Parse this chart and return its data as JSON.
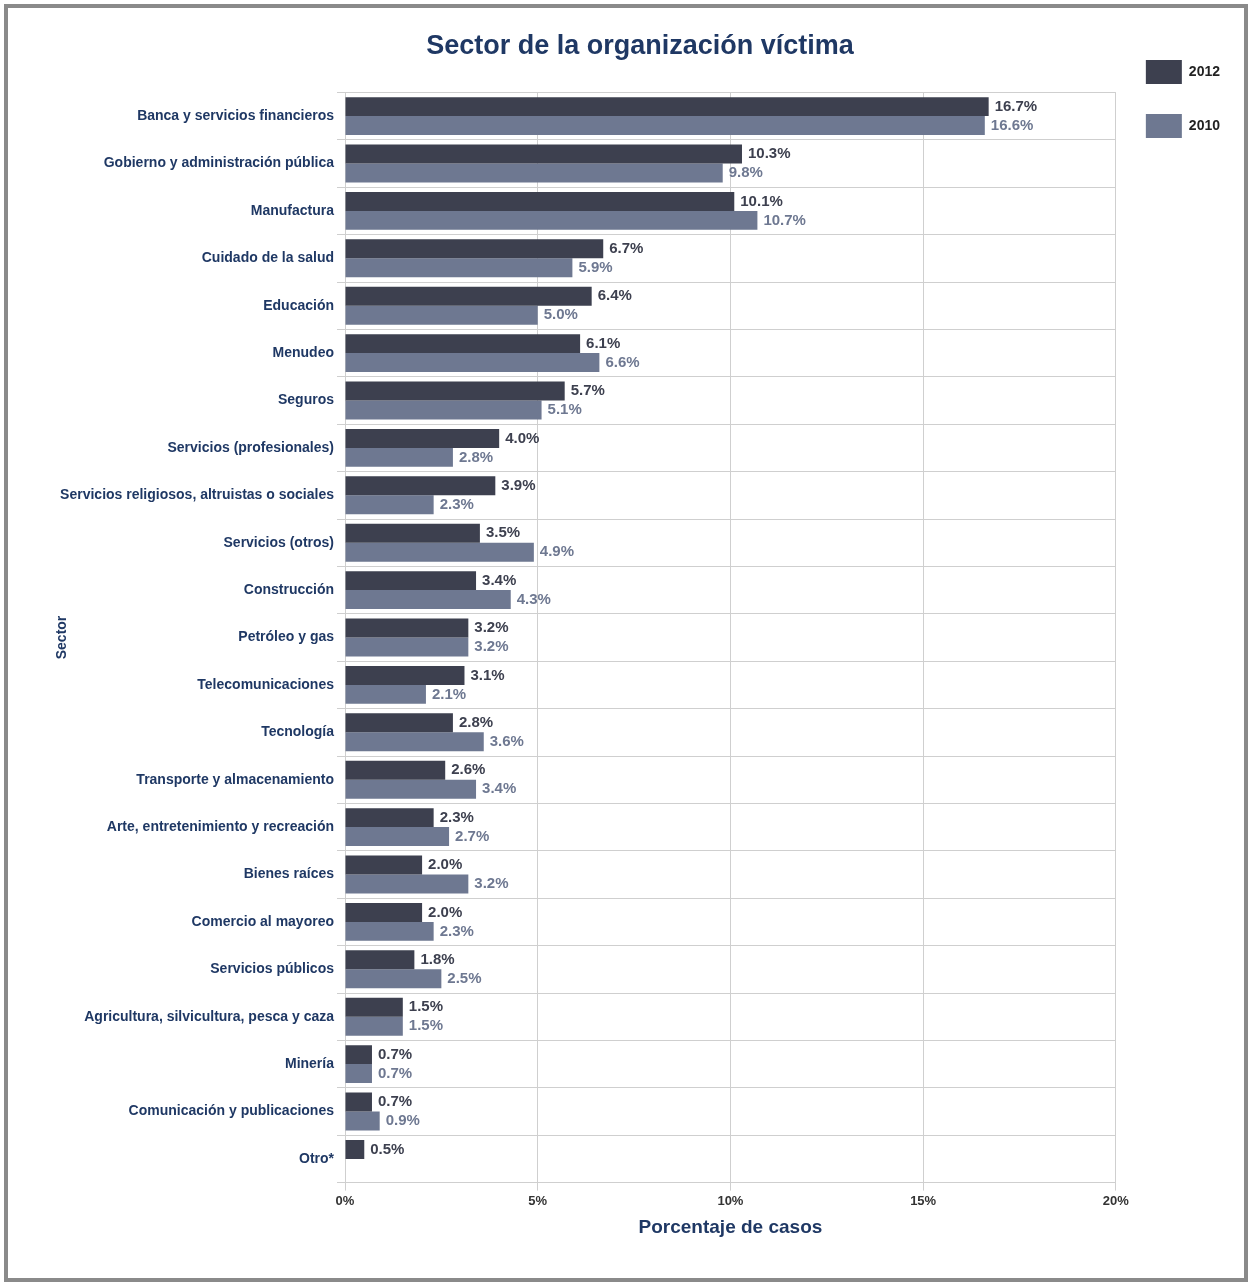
{
  "chart_data": {
    "type": "bar",
    "orientation": "horizontal",
    "title": "Sector de la organización víctima",
    "xlabel": "Porcentaje de casos",
    "ylabel": "Sector",
    "categories": [
      "Banca y servicios financieros",
      "Gobierno y administración pública",
      "Manufactura",
      "Cuidado de la salud",
      "Educación",
      "Menudeo",
      "Seguros",
      "Servicios (profesionales)",
      "Servicios religiosos, altruistas o sociales",
      "Servicios (otros)",
      "Construcción",
      "Petróleo y gas",
      "Telecomunicaciones",
      "Tecnología",
      "Transporte y almacenamiento",
      "Arte, entretenimiento y recreación",
      "Bienes raíces",
      "Comercio al mayoreo",
      "Servicios públicos",
      "Agricultura, silvicultura, pesca y caza",
      "Minería",
      "Comunicación y publicaciones",
      "Otro*"
    ],
    "series": [
      {
        "name": "2012",
        "color": "#3d404f",
        "values": [
          16.7,
          10.3,
          10.1,
          6.7,
          6.4,
          6.1,
          5.7,
          4.0,
          3.9,
          3.5,
          3.4,
          3.2,
          3.1,
          2.8,
          2.6,
          2.3,
          2.0,
          2.0,
          1.8,
          1.5,
          0.7,
          0.7,
          0.5
        ],
        "value_labels": [
          "16.7%",
          "10.3%",
          "10.1%",
          "6.7%",
          "6.4%",
          "6.1%",
          "5.7%",
          "4.0%",
          "3.9%",
          "3.5%",
          "3.4%",
          "3.2%",
          "3.1%",
          "2.8%",
          "2.6%",
          "2.3%",
          "2.0%",
          "2.0%",
          "1.8%",
          "1.5%",
          "0.7%",
          "0.7%",
          "0.5%"
        ]
      },
      {
        "name": "2010",
        "color": "#6e7891",
        "values": [
          16.6,
          9.8,
          10.7,
          5.9,
          5.0,
          6.6,
          5.1,
          2.8,
          2.3,
          4.9,
          4.3,
          3.2,
          2.1,
          3.6,
          3.4,
          2.7,
          3.2,
          2.3,
          2.5,
          1.5,
          0.7,
          0.9,
          null
        ],
        "value_labels": [
          "16.6%",
          "9.8%",
          "10.7%",
          "5.9%",
          "5.0%",
          "6.6%",
          "5.1%",
          "2.8%",
          "2.3%",
          "4.9%",
          "4.3%",
          "3.2%",
          "2.1%",
          "3.6%",
          "3.4%",
          "2.7%",
          "3.2%",
          "2.3%",
          "2.5%",
          "1.5%",
          "0.7%",
          "0.9%",
          null
        ]
      }
    ],
    "xlim": [
      0,
      20
    ],
    "xticks": [
      {
        "value": 0,
        "label": "0%"
      },
      {
        "value": 5,
        "label": "5%"
      },
      {
        "value": 10,
        "label": "10%"
      },
      {
        "value": 15,
        "label": "15%"
      },
      {
        "value": 20,
        "label": "20%"
      }
    ],
    "grid": true,
    "legend": "top right"
  }
}
